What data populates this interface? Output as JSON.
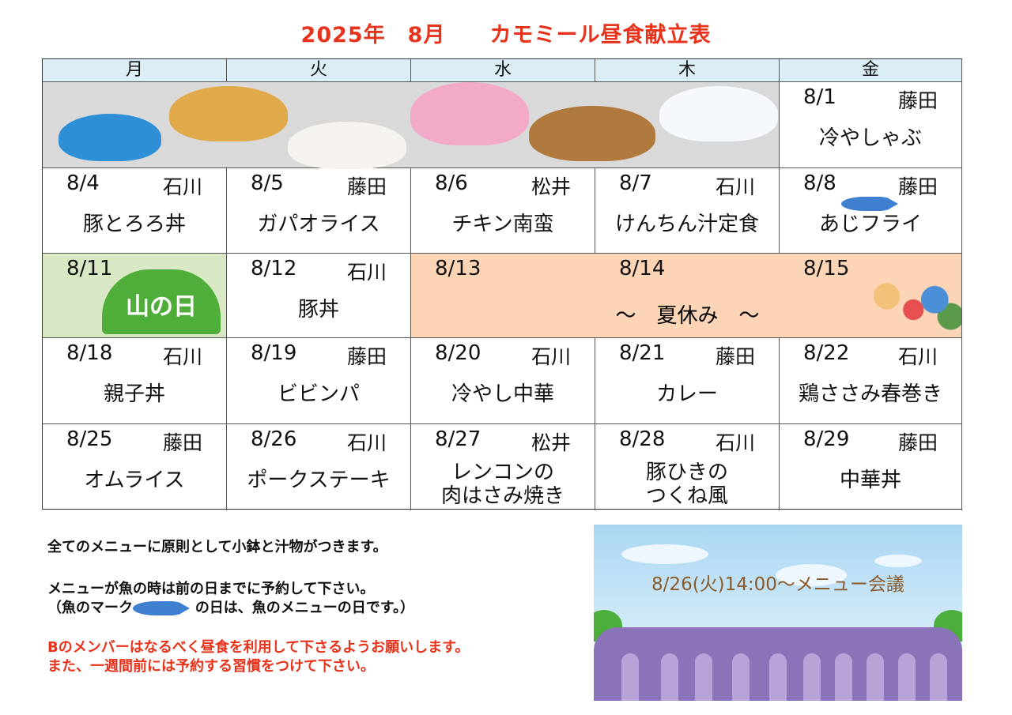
{
  "title": "2025年　8月　　カモミール昼食献立表",
  "weekdays": [
    "月",
    "火",
    "水",
    "木",
    "金"
  ],
  "weeks": [
    [
      null,
      null,
      null,
      null,
      {
        "date": "8/1",
        "person": "藤田",
        "menu": "冷やしゃぶ"
      }
    ],
    [
      {
        "date": "8/4",
        "person": "石川",
        "menu": "豚とろろ丼"
      },
      {
        "date": "8/5",
        "person": "藤田",
        "menu": "ガパオライス"
      },
      {
        "date": "8/6",
        "person": "松井",
        "menu": "チキン南蛮"
      },
      {
        "date": "8/7",
        "person": "石川",
        "menu": "けんちん汁定食"
      },
      {
        "date": "8/8",
        "person": "藤田",
        "menu": "あじフライ",
        "icon": "fish"
      }
    ],
    [
      {
        "date": "8/11",
        "person": "",
        "menu": "",
        "icon": "mountain-day",
        "sign": "山の日"
      },
      {
        "date": "8/12",
        "person": "石川",
        "menu": "豚丼"
      },
      {
        "date": "8/13",
        "person": "",
        "menu": ""
      },
      {
        "date": "8/14",
        "person": "",
        "menu": ""
      },
      {
        "date": "8/15",
        "person": "",
        "menu": "",
        "icon": "family-travel"
      }
    ],
    [
      {
        "date": "8/18",
        "person": "石川",
        "menu": "親子丼"
      },
      {
        "date": "8/19",
        "person": "藤田",
        "menu": "ビビンパ"
      },
      {
        "date": "8/20",
        "person": "石川",
        "menu": "冷やし中華"
      },
      {
        "date": "8/21",
        "person": "藤田",
        "menu": "カレー"
      },
      {
        "date": "8/22",
        "person": "石川",
        "menu": "鶏ささみ春巻き"
      }
    ],
    [
      {
        "date": "8/25",
        "person": "藤田",
        "menu": "オムライス"
      },
      {
        "date": "8/26",
        "person": "石川",
        "menu": "ポークステーキ"
      },
      {
        "date": "8/27",
        "person": "松井",
        "menu": "レンコンの\n肉はさみ焼き"
      },
      {
        "date": "8/28",
        "person": "石川",
        "menu": "豚ひきの\nつくね風"
      },
      {
        "date": "8/29",
        "person": "藤田",
        "menu": "中華丼"
      }
    ]
  ],
  "summer_break": "～　夏休み　～",
  "notes": {
    "line1": "全てのメニューに原則として小鉢と汁物がつきます。",
    "line2": "メニューが魚の時は前の日までに予約して下さい。",
    "line3a": "（魚のマーク",
    "line3b": "の日は、魚のメニューの日です。）",
    "line4": "Bのメンバーはなるべく昼食を利用して下さるようお願いします。",
    "line5": "また、一週間前には予約する習慣をつけて下さい。"
  },
  "meeting": "8/26(火)14:00～メニュー会議",
  "colors": {
    "title": "#e8331c",
    "header": "#dbeef5",
    "holiday": "#d8e8c4",
    "break": "#fbd5b5",
    "grey": "#d9d9d9"
  }
}
